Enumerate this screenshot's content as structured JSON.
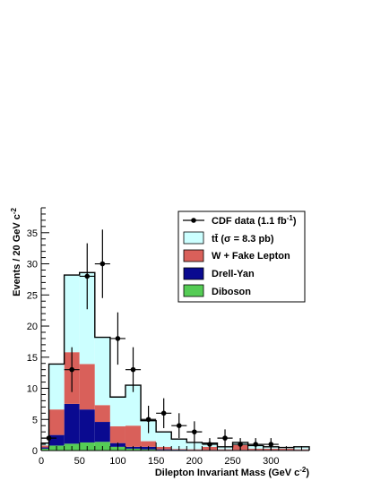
{
  "chart_data": {
    "type": "bar",
    "stacked": true,
    "bin_edges": [
      0,
      10,
      30,
      50,
      70,
      90,
      110,
      130,
      150,
      170,
      190,
      210,
      230,
      250,
      270,
      290,
      310,
      330,
      350
    ],
    "series": [
      {
        "name": "Diboson",
        "color": "#55cc55",
        "values": [
          0.3,
          0.8,
          1.1,
          1.3,
          1.4,
          0.6,
          0.3,
          0.2,
          0.1,
          0.1,
          0.05,
          0.05,
          0.05,
          0.05,
          0.05,
          0.05,
          0.05,
          0.05
        ]
      },
      {
        "name": "Drell-Yan",
        "color": "#0a0a90",
        "values": [
          0.2,
          1.7,
          6.4,
          5.3,
          3.2,
          0.6,
          0.3,
          0.4,
          0.1,
          0.05,
          0.05,
          0.05,
          0.05,
          0.05,
          0.05,
          0.05,
          0.05,
          0.05
        ]
      },
      {
        "name": "W + Fake Lepton",
        "color": "#d9605a",
        "values": [
          0.3,
          4.1,
          8.3,
          7.3,
          2.7,
          2.7,
          3.4,
          0.9,
          0.4,
          0.1,
          0.1,
          0.5,
          0.1,
          0.8,
          0.2,
          0.2,
          0.2,
          0.1
        ]
      },
      {
        "name": "tt̄ (σ = 8.3 pb)",
        "color": "#ccffff",
        "values": [
          0.4,
          7.3,
          12.4,
          14.7,
          10.9,
          4.7,
          6.5,
          3.3,
          2.4,
          1.6,
          1.1,
          0.6,
          0.4,
          0.4,
          0.5,
          0.3,
          0.2,
          0.4
        ]
      }
    ],
    "data_points": {
      "name": "CDF data (1.1 fb⁻¹)",
      "x": [
        10,
        40,
        60,
        80,
        100,
        120,
        140,
        160,
        180,
        200,
        220,
        240,
        260,
        280,
        300
      ],
      "y": [
        2,
        13,
        28,
        30,
        18,
        13,
        5,
        6,
        4,
        3,
        1,
        2,
        1,
        1,
        1
      ],
      "xerr": 10,
      "yerr": [
        1.4,
        3.6,
        5.3,
        5.5,
        4.2,
        3.6,
        2.2,
        2.4,
        2.0,
        1.7,
        1.0,
        1.4,
        1.0,
        1.0,
        1.0
      ]
    },
    "xlabel": "Dilepton Invariant Mass (GeV c⁻²)",
    "ylabel": "Events / 20 GeV c⁻²",
    "xlim": [
      0,
      350
    ],
    "ylim": [
      0,
      39
    ],
    "x_ticks": [
      0,
      50,
      100,
      150,
      200,
      250,
      300
    ],
    "y_ticks": [
      0,
      5,
      10,
      15,
      20,
      25,
      30,
      35
    ],
    "legend_position": "top-right",
    "grid": false
  },
  "labels": {
    "xlabel_main": "Dilepton Invariant Mass (GeV c",
    "xlabel_sup": "-2",
    "xlabel_end": ")",
    "ylabel_main": "Events / 20 GeV c",
    "ylabel_sup": "-2",
    "legend_data_main": "CDF data (1.1 fb",
    "legend_data_sup": "-1",
    "legend_data_end": ")",
    "legend_ttbar": "tt̄ (σ = 8.3 pb)",
    "legend_wfake": "W + Fake Lepton",
    "legend_dy": "Drell-Yan",
    "legend_diboson": "Diboson"
  }
}
